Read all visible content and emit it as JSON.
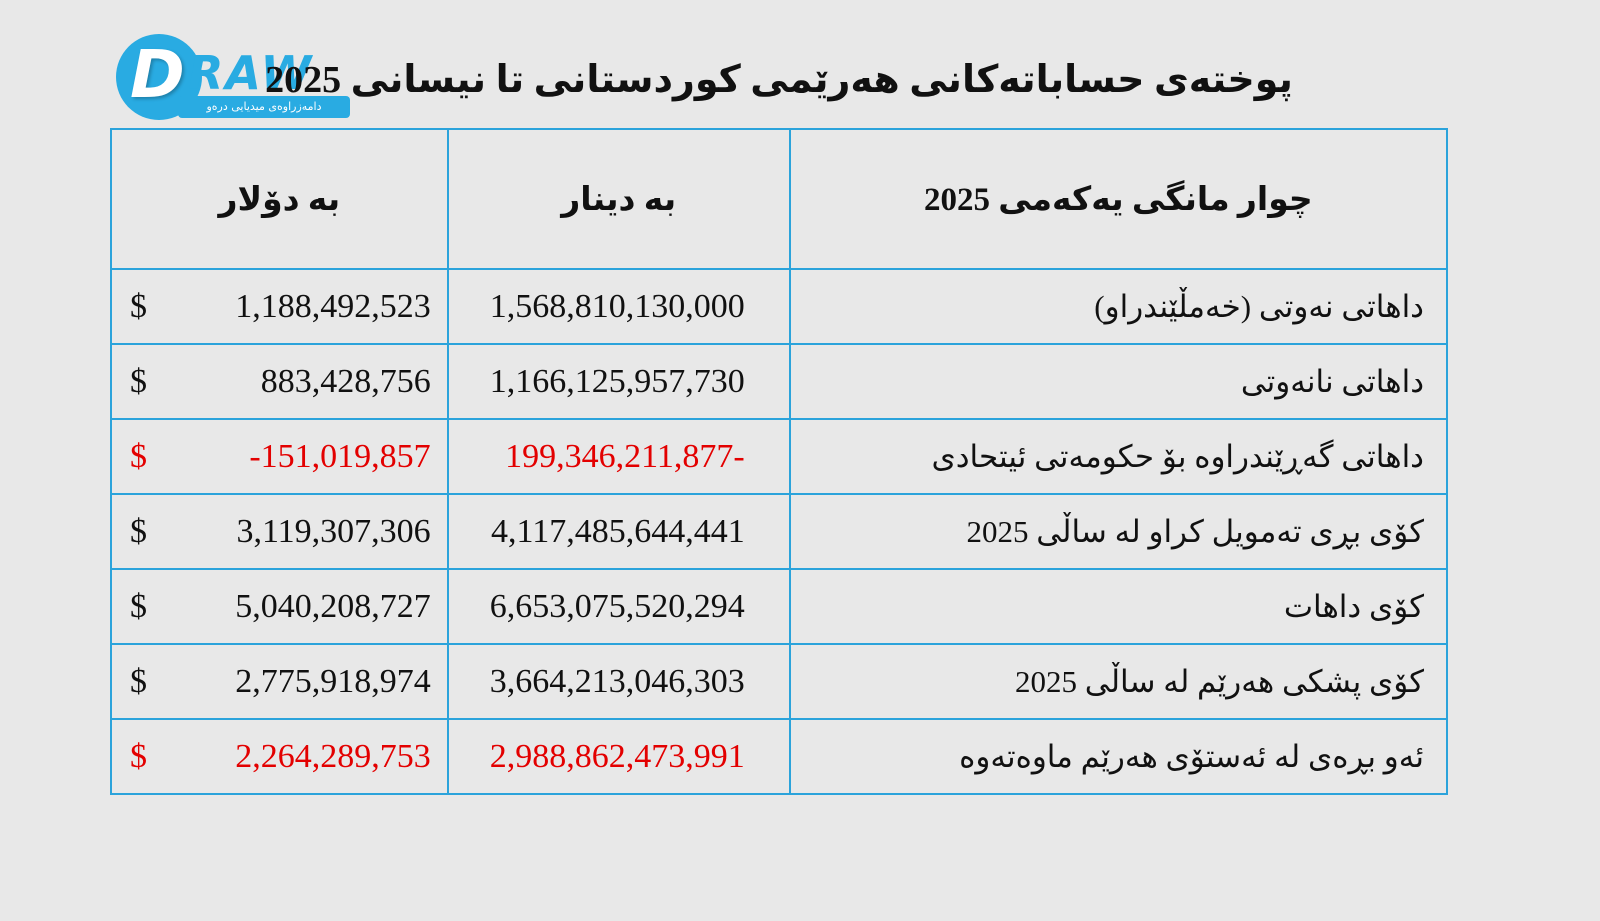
{
  "page": {
    "background_color": "#e8e8e8",
    "accent_color": "#29abe2",
    "table_border_color": "#2ba3db",
    "negative_color": "#e30000"
  },
  "logo": {
    "brand_d": "D",
    "brand_raw": "RAW",
    "banner_text": "دامەزراوەی میدیایی درەو"
  },
  "title": "پوختەی حساباتەکانی هەرێمی کوردستانی تا نیسانی 2025",
  "table": {
    "currency_symbol": "$",
    "headers": {
      "category": "چوار مانگی یەکەمی 2025",
      "dinar": "به دینار",
      "dollar": "به دۆلار"
    },
    "rows": [
      {
        "label": "داهاتی نەوتی (خەمڵێندراو)",
        "dinar": "1,568,810,130,000",
        "dollar": "1,188,492,523",
        "negative": false
      },
      {
        "label": "داهاتی نانەوتی",
        "dinar": "1,166,125,957,730",
        "dollar": "883,428,756",
        "negative": false
      },
      {
        "label": "داهاتی گەڕێندراوە بۆ حکومەتی ئیتحادی",
        "dinar": "199,346,211,877-",
        "dollar": "-151,019,857",
        "negative": true
      },
      {
        "label": "کۆی بڕی تەمویل کراو لە ساڵی 2025",
        "dinar": "4,117,485,644,441",
        "dollar": "3,119,307,306",
        "negative": false
      },
      {
        "label": "کۆی داهات",
        "dinar": "6,653,075,520,294",
        "dollar": "5,040,208,727",
        "negative": false
      },
      {
        "label": "کۆی پشکی هەرێم لە ساڵی 2025",
        "dinar": "3,664,213,046,303",
        "dollar": "2,775,918,974",
        "negative": false
      },
      {
        "label": "ئەو بڕەی لە ئەستۆی هەرێم ماوەتەوە",
        "dinar": "2,988,862,473,991",
        "dollar": "2,264,289,753",
        "negative": true
      }
    ]
  }
}
